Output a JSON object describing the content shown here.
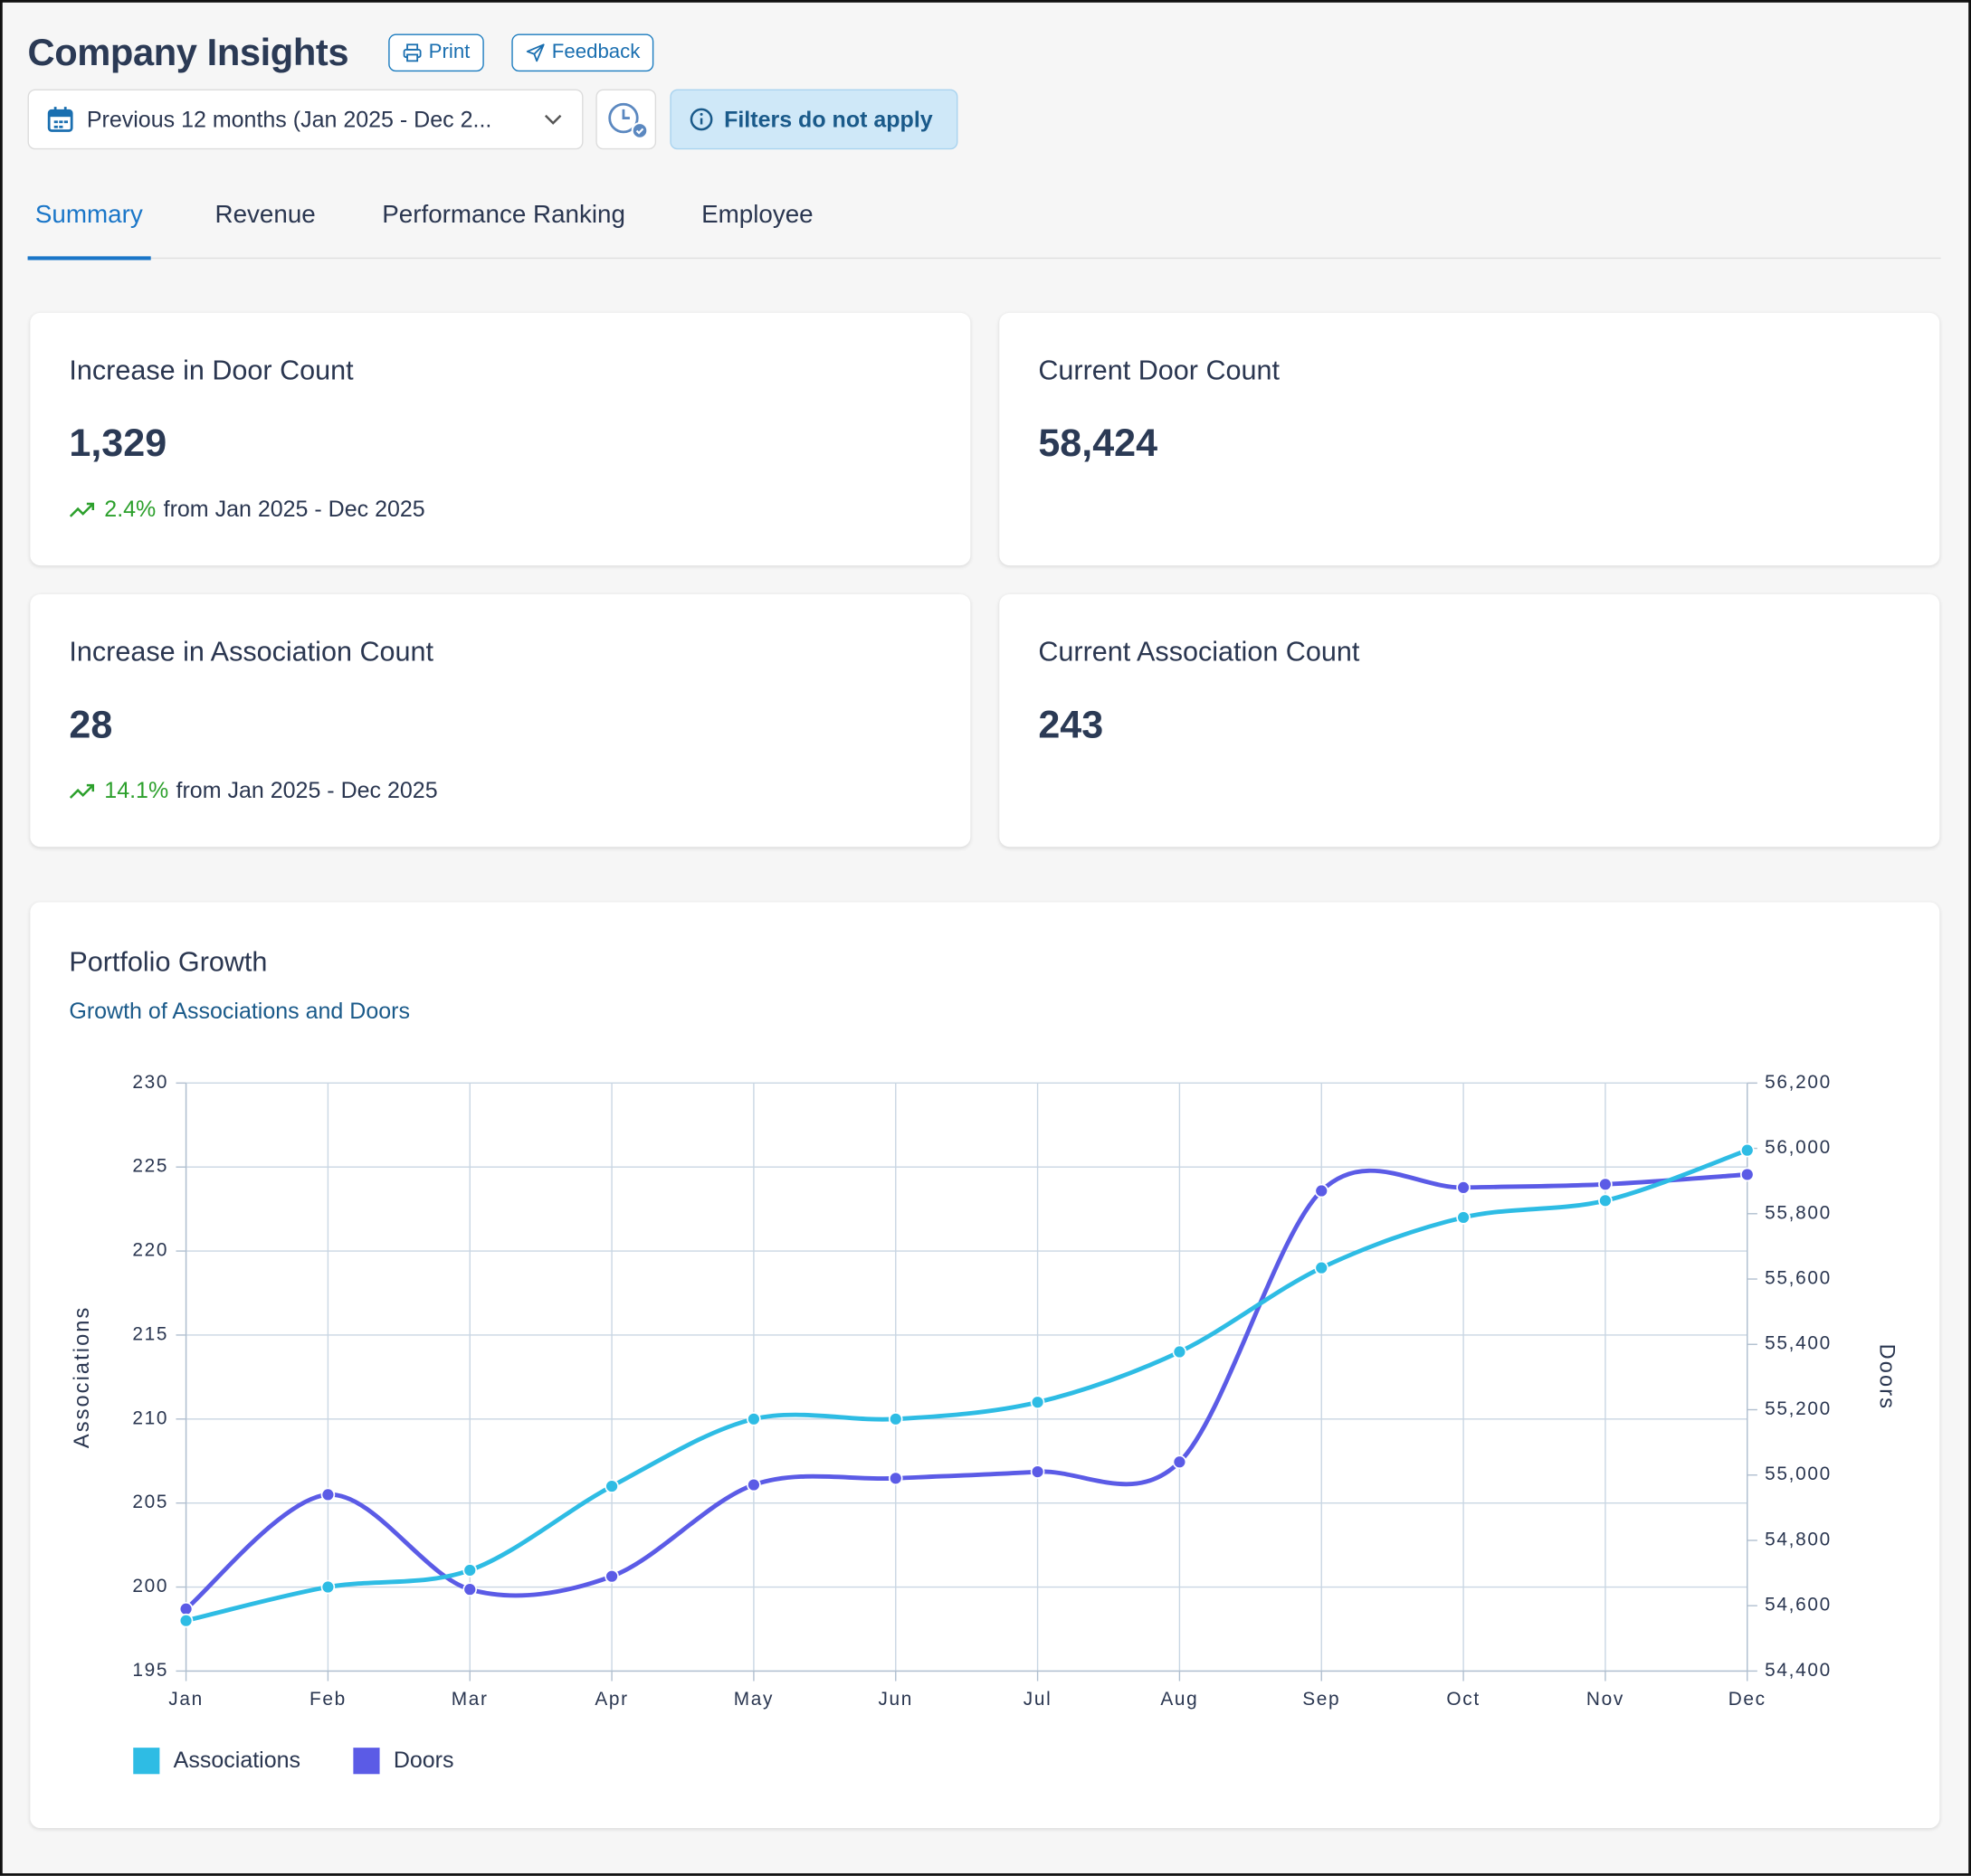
{
  "header": {
    "title": "Company Insights",
    "buttons": [
      "Print",
      "Feedback"
    ]
  },
  "filters": {
    "date_range": "Previous 12 months (Jan 2025 - Dec 2...",
    "notice": "Filters do not apply"
  },
  "tabs": {
    "items": [
      "Summary",
      "Revenue",
      "Performance Ranking",
      "Employee"
    ],
    "active": 0
  },
  "cards": [
    {
      "title": "Increase in Door Count",
      "value": "1,329",
      "change": "2.4%",
      "period": "from Jan 2025 - Dec 2025"
    },
    {
      "title": "Current Door Count",
      "value": "58,424"
    },
    {
      "title": "Increase in Association Count",
      "value": "28",
      "change": "14.1%",
      "period": "from Jan 2025 - Dec 2025"
    },
    {
      "title": "Current Association Count",
      "value": "243"
    }
  ],
  "chart_data": {
    "type": "line",
    "title": "Portfolio Growth",
    "subtitle": "Growth of Associations and Doors",
    "y_label": "Associations",
    "y2_label": "Doors",
    "categories": [
      "Jan",
      "Feb",
      "Mar",
      "Apr",
      "May",
      "Jun",
      "Jul",
      "Aug",
      "Sep",
      "Oct",
      "Nov",
      "Dec"
    ],
    "series": [
      {
        "name": "Associations",
        "color": "#2ebce4",
        "values": [
          198,
          200,
          201,
          206,
          210,
          210,
          211,
          214,
          219,
          222,
          223,
          226
        ]
      },
      {
        "name": "Doors",
        "color": "#5b5be6",
        "axis": "y2",
        "values": [
          54590,
          54940,
          54650,
          54690,
          54970,
          54990,
          55010,
          55040,
          55870,
          55880,
          55890,
          55920
        ]
      }
    ],
    "ylim": [
      195,
      230
    ],
    "yticks": [
      195,
      200,
      205,
      210,
      215,
      220,
      225,
      230
    ],
    "y2lim": [
      54400,
      56200
    ],
    "y2ticks": [
      {
        "value": 54400,
        "label": "54,400"
      },
      {
        "value": 54600,
        "label": "54,600"
      },
      {
        "value": 54800,
        "label": "54,800"
      },
      {
        "value": 55000,
        "label": "55,000"
      },
      {
        "value": 55200,
        "label": "55,200"
      },
      {
        "value": 55400,
        "label": "55,400"
      },
      {
        "value": 55600,
        "label": "55,600"
      },
      {
        "value": 55800,
        "label": "55,800"
      },
      {
        "value": 56000,
        "label": "56,000"
      },
      {
        "value": 56200,
        "label": "56,200"
      }
    ],
    "grid": true,
    "legend": "bottom-left"
  }
}
